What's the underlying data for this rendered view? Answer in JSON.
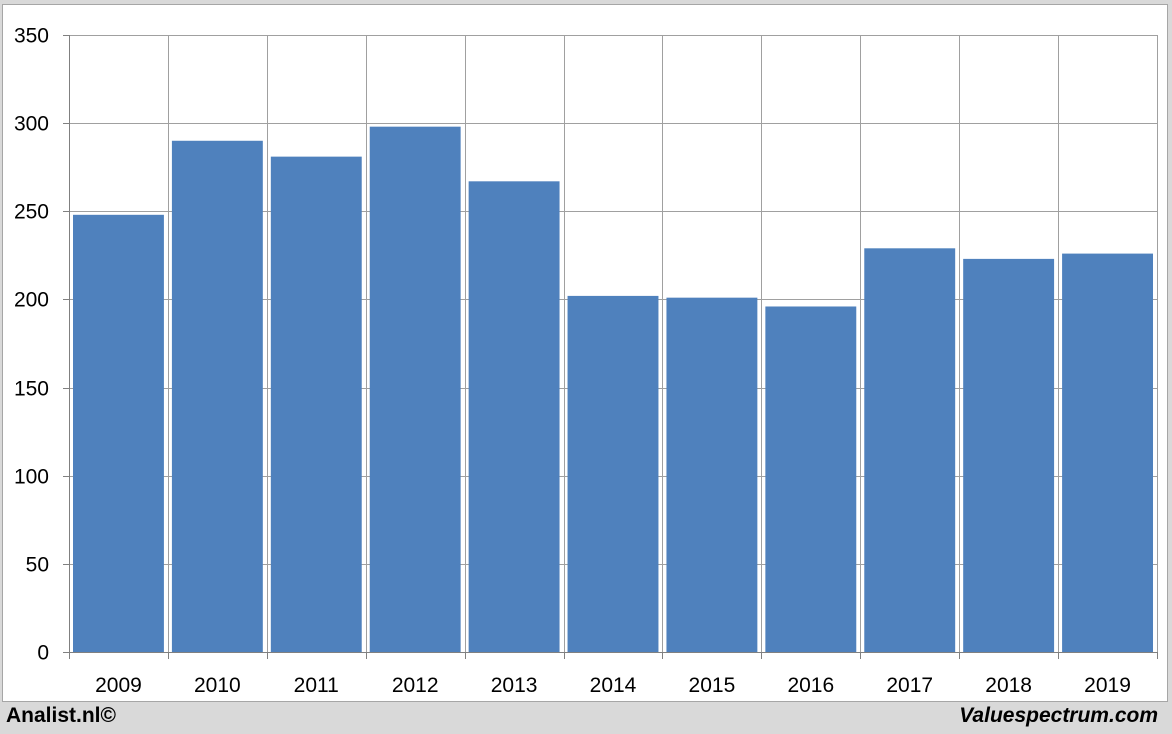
{
  "footer": {
    "left_text": "Analist.nl©",
    "right_text": "Valuespectrum.com"
  },
  "colors": {
    "bar": "#4f81bd",
    "background": "#ffffff",
    "grid": "#a0a0a0"
  },
  "chart_data": {
    "type": "bar",
    "title": "",
    "xlabel": "",
    "ylabel": "",
    "categories": [
      "2009",
      "2010",
      "2011",
      "2012",
      "2013",
      "2014",
      "2015",
      "2016",
      "2017",
      "2018",
      "2019"
    ],
    "values": [
      248,
      290,
      281,
      298,
      267,
      202,
      201,
      196,
      229,
      223,
      226
    ],
    "ylim": [
      0,
      350
    ],
    "yticks": [
      0,
      50,
      100,
      150,
      200,
      250,
      300,
      350
    ],
    "grid": true,
    "legend": "none"
  }
}
